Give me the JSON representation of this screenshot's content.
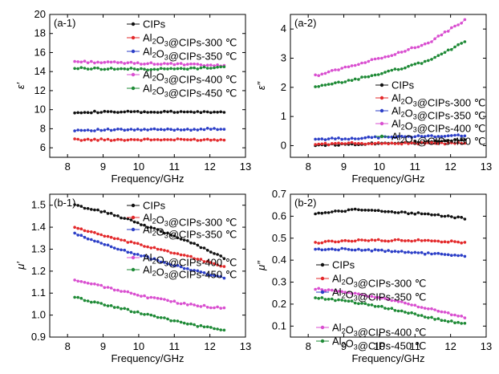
{
  "colors": {
    "CIPs": "#111111",
    "Al2O3@CIPs-300": "#e3292b",
    "Al2O3@CIPs-350": "#2b3ec7",
    "Al2O3@CIPs-400": "#d94fd0",
    "Al2O3@CIPs-450": "#1e8a36"
  },
  "chart_data": [
    {
      "type": "line",
      "panel_label": "(a-1)",
      "ylabel": "ε′",
      "xlabel": "Frequency/GHz",
      "xlim": [
        7.5,
        13
      ],
      "ylim": [
        5,
        20
      ],
      "xticks": [
        8,
        9,
        10,
        11,
        12,
        13
      ],
      "yticks": [
        6,
        8,
        10,
        12,
        14,
        16,
        18,
        20
      ],
      "legend": [
        {
          "series": "CIPs",
          "parts": [
            {
              "t": "CIPs"
            }
          ]
        },
        {
          "series": "Al2O3@CIPs-300",
          "parts": [
            {
              "t": "Al"
            },
            {
              "t": "2",
              "sub": true
            },
            {
              "t": "O"
            },
            {
              "t": "3",
              "sub": true
            },
            {
              "t": "@CIPs-300 ℃"
            }
          ]
        },
        {
          "series": "Al2O3@CIPs-350",
          "parts": [
            {
              "t": "Al"
            },
            {
              "t": "2",
              "sub": true
            },
            {
              "t": "O"
            },
            {
              "t": "3",
              "sub": true
            },
            {
              "t": "@CIPs-350 ℃"
            }
          ]
        },
        {
          "series": "Al2O3@CIPs-400",
          "parts": [
            {
              "t": "Al"
            },
            {
              "t": "2",
              "sub": true
            },
            {
              "t": "O"
            },
            {
              "t": "3",
              "sub": true
            },
            {
              "t": "@CIPs-400 ℃"
            }
          ]
        },
        {
          "series": "Al2O3@CIPs-450",
          "parts": [
            {
              "t": "Al"
            },
            {
              "t": "2",
              "sub": true
            },
            {
              "t": "O"
            },
            {
              "t": "3",
              "sub": true
            },
            {
              "t": "@CIPs-450 ℃"
            }
          ]
        }
      ],
      "series": [
        {
          "key": "CIPs",
          "values": [
            9.75,
            9.75,
            9.75,
            9.75,
            9.75
          ]
        },
        {
          "key": "Al2O3@CIPs-300",
          "values": [
            6.85,
            6.85,
            6.85,
            6.85,
            6.85
          ]
        },
        {
          "key": "Al2O3@CIPs-350",
          "values": [
            7.85,
            7.88,
            7.9,
            7.93,
            7.98
          ]
        },
        {
          "key": "Al2O3@CIPs-400",
          "values": [
            15.05,
            14.95,
            14.85,
            14.75,
            14.6
          ]
        },
        {
          "key": "Al2O3@CIPs-450",
          "values": [
            14.35,
            14.3,
            14.25,
            14.3,
            14.5
          ]
        }
      ],
      "x": [
        8.2,
        9.25,
        10.3,
        11.35,
        12.4
      ]
    },
    {
      "type": "line",
      "panel_label": "(a-2)",
      "ylabel": "ε″",
      "xlabel": "Frequency/GHz",
      "xlim": [
        7.5,
        13
      ],
      "ylim": [
        -0.4,
        4.5
      ],
      "xticks": [
        8,
        9,
        10,
        11,
        12,
        13
      ],
      "yticks": [
        0,
        1,
        2,
        3,
        4
      ],
      "legend": [
        {
          "series": "CIPs",
          "parts": [
            {
              "t": "CIPs"
            }
          ]
        },
        {
          "series": "Al2O3@CIPs-300",
          "parts": [
            {
              "t": "Al"
            },
            {
              "t": "2",
              "sub": true
            },
            {
              "t": "O"
            },
            {
              "t": "3",
              "sub": true
            },
            {
              "t": "@CIPs-300 ℃"
            }
          ]
        },
        {
          "series": "Al2O3@CIPs-350",
          "parts": [
            {
              "t": "Al"
            },
            {
              "t": "2",
              "sub": true
            },
            {
              "t": "O"
            },
            {
              "t": "3",
              "sub": true
            },
            {
              "t": "@CIPs-350 ℃"
            }
          ]
        },
        {
          "series": "Al2O3@CIPs-400",
          "parts": [
            {
              "t": "Al"
            },
            {
              "t": "2",
              "sub": true
            },
            {
              "t": "O"
            },
            {
              "t": "3",
              "sub": true
            },
            {
              "t": "@CIPs-400 ℃"
            }
          ]
        },
        {
          "series": "Al2O3@CIPs-450",
          "parts": [
            {
              "t": "Al"
            },
            {
              "t": "2",
              "sub": true
            },
            {
              "t": "O"
            },
            {
              "t": "3",
              "sub": true
            },
            {
              "t": "@CIPs-450 ℃"
            }
          ]
        }
      ],
      "series": [
        {
          "key": "CIPs",
          "values": [
            0.02,
            0.05,
            0.1,
            0.12,
            0.2
          ]
        },
        {
          "key": "Al2O3@CIPs-300",
          "values": [
            0.05,
            0.08,
            0.08,
            0.08,
            0.08
          ]
        },
        {
          "key": "Al2O3@CIPs-350",
          "values": [
            0.22,
            0.25,
            0.3,
            0.32,
            0.35
          ]
        },
        {
          "key": "Al2O3@CIPs-400",
          "values": [
            2.4,
            2.75,
            3.1,
            3.5,
            4.3
          ]
        },
        {
          "key": "Al2O3@CIPs-450",
          "values": [
            2.0,
            2.25,
            2.55,
            2.9,
            3.55
          ]
        }
      ],
      "x": [
        8.2,
        9.25,
        10.3,
        11.35,
        12.4
      ]
    },
    {
      "type": "line",
      "panel_label": "(b-1)",
      "ylabel": "μ′",
      "xlabel": "Frequency/GHz",
      "xlim": [
        7.5,
        13
      ],
      "ylim": [
        0.9,
        1.55
      ],
      "xticks": [
        8,
        9,
        10,
        11,
        12,
        13
      ],
      "yticks": [
        0.9,
        1.0,
        1.1,
        1.2,
        1.3,
        1.4,
        1.5
      ],
      "legend": [
        {
          "series": "CIPs",
          "parts": [
            {
              "t": "CIPs"
            }
          ]
        },
        {
          "series": "Al2O3@CIPs-300",
          "parts": [
            {
              "t": "Al"
            },
            {
              "t": "2",
              "sub": true
            },
            {
              "t": "O"
            },
            {
              "t": "3",
              "sub": true
            },
            {
              "t": "@CIPs-300 ℃"
            }
          ]
        },
        {
          "series": "Al2O3@CIPs-350",
          "parts": [
            {
              "t": "Al"
            },
            {
              "t": "2",
              "sub": true
            },
            {
              "t": "O"
            },
            {
              "t": "3",
              "sub": true
            },
            {
              "t": "@CIPs-350 ℃"
            }
          ]
        },
        {
          "series": "Al2O3@CIPs-400",
          "parts": [
            {
              "t": "Al"
            },
            {
              "t": "2",
              "sub": true
            },
            {
              "t": "O"
            },
            {
              "t": "3",
              "sub": true
            },
            {
              "t": "@CIPs-400 ℃"
            }
          ]
        },
        {
          "series": "Al2O3@CIPs-450",
          "parts": [
            {
              "t": "Al"
            },
            {
              "t": "2",
              "sub": true
            },
            {
              "t": "O"
            },
            {
              "t": "3",
              "sub": true
            },
            {
              "t": "@CIPs-450 ℃"
            }
          ]
        }
      ],
      "series": [
        {
          "key": "CIPs",
          "values": [
            1.5,
            1.46,
            1.4,
            1.34,
            1.26
          ]
        },
        {
          "key": "Al2O3@CIPs-300",
          "values": [
            1.4,
            1.35,
            1.31,
            1.27,
            1.22
          ]
        },
        {
          "key": "Al2O3@CIPs-350",
          "values": [
            1.37,
            1.31,
            1.26,
            1.21,
            1.17
          ]
        },
        {
          "key": "Al2O3@CIPs-400",
          "values": [
            1.16,
            1.12,
            1.08,
            1.05,
            1.03
          ]
        },
        {
          "key": "Al2O3@CIPs-450",
          "values": [
            1.08,
            1.04,
            1.0,
            0.96,
            0.93
          ]
        }
      ],
      "x": [
        8.2,
        9.25,
        10.3,
        11.35,
        12.4
      ]
    },
    {
      "type": "line",
      "panel_label": "(b-2)",
      "ylabel": "μ″",
      "xlabel": "Frequency/GHz",
      "xlim": [
        7.5,
        13
      ],
      "ylim": [
        0.05,
        0.7
      ],
      "xticks": [
        8,
        9,
        10,
        11,
        12,
        13
      ],
      "yticks": [
        0.1,
        0.2,
        0.3,
        0.4,
        0.5,
        0.6,
        0.7
      ],
      "legend": [
        {
          "series": "CIPs",
          "parts": [
            {
              "t": "CIPs"
            }
          ]
        },
        {
          "series": "Al2O3@CIPs-300",
          "parts": [
            {
              "t": "Al"
            },
            {
              "t": "2",
              "sub": true
            },
            {
              "t": "O"
            },
            {
              "t": "3",
              "sub": true
            },
            {
              "t": "@CIPs-300 ℃"
            }
          ]
        },
        {
          "series": "Al2O3@CIPs-350",
          "parts": [
            {
              "t": "Al"
            },
            {
              "t": "2",
              "sub": true
            },
            {
              "t": "O"
            },
            {
              "t": "3",
              "sub": true
            },
            {
              "t": "@CIPs-350 ℃"
            }
          ]
        },
        {
          "series": "Al2O3@CIPs-400",
          "parts": [
            {
              "t": "Al"
            },
            {
              "t": "2",
              "sub": true
            },
            {
              "t": "O"
            },
            {
              "t": "3",
              "sub": true
            },
            {
              "t": "@CIPs-400 ℃"
            }
          ]
        },
        {
          "series": "Al2O3@CIPs-450",
          "parts": [
            {
              "t": "Al"
            },
            {
              "t": "2",
              "sub": true
            },
            {
              "t": "O"
            },
            {
              "t": "3",
              "sub": true
            },
            {
              "t": "@CIPs-450 ℃"
            }
          ]
        }
      ],
      "series": [
        {
          "key": "CIPs",
          "values": [
            0.61,
            0.63,
            0.62,
            0.61,
            0.59
          ]
        },
        {
          "key": "Al2O3@CIPs-300",
          "values": [
            0.48,
            0.49,
            0.49,
            0.49,
            0.48
          ]
        },
        {
          "key": "Al2O3@CIPs-350",
          "values": [
            0.45,
            0.45,
            0.44,
            0.43,
            0.42
          ]
        },
        {
          "key": "Al2O3@CIPs-400",
          "values": [
            0.27,
            0.25,
            0.22,
            0.18,
            0.14
          ]
        },
        {
          "key": "Al2O3@CIPs-450",
          "values": [
            0.23,
            0.21,
            0.18,
            0.14,
            0.11
          ]
        }
      ],
      "x": [
        8.2,
        9.25,
        10.3,
        11.35,
        12.4
      ]
    }
  ]
}
